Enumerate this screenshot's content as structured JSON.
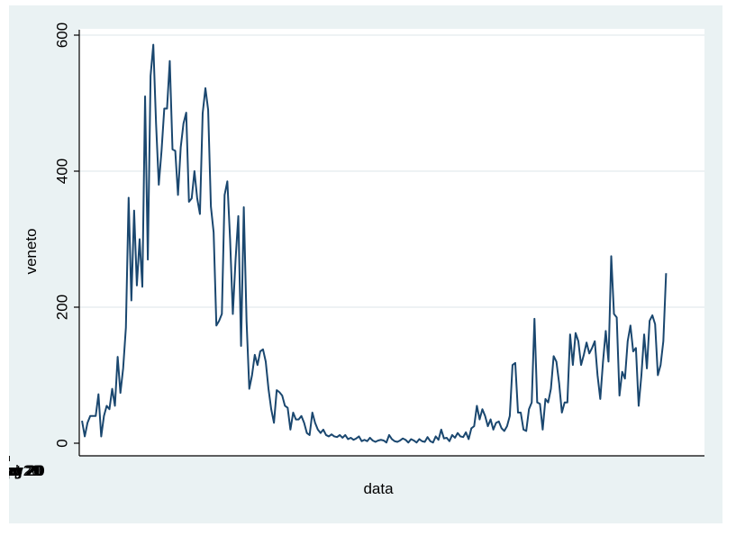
{
  "chart_data": {
    "type": "line",
    "xlabel": "data",
    "ylabel": "veneto",
    "ylim": [
      0,
      600
    ],
    "yticks": [
      0,
      200,
      400,
      600
    ],
    "xticks": [
      "01 Mar 2020",
      "01 Apr 2020",
      "01 May 2020",
      "01 Jun 2020",
      "01 Jul 2020",
      "01 Aug 2020",
      "01 Sep 2020",
      "01 Oct 2020"
    ],
    "xtick_labels": [
      "01 Mar 20",
      "01 Apr 20",
      "01 May 20",
      "01 Jun 20",
      "01 Jul 20",
      "01 Aug 20",
      "01 Sep 20",
      "01 Oct 20"
    ],
    "xlim": [
      "2020-02-23",
      "2020-10-08"
    ],
    "grid": true,
    "line_color": "#1a476f",
    "series": [
      {
        "start_date": "2020-02-24",
        "values": [
          33,
          10,
          30,
          40,
          40,
          40,
          72,
          10,
          40,
          55,
          50,
          80,
          55,
          127,
          74,
          110,
          170,
          361,
          210,
          342,
          232,
          300,
          230,
          510,
          270,
          540,
          586,
          470,
          380,
          430,
          492,
          492,
          562,
          432,
          430,
          365,
          435,
          470,
          486,
          355,
          360,
          400,
          360,
          337,
          485,
          522,
          490,
          348,
          310,
          173,
          180,
          190,
          365,
          385,
          300,
          190,
          270,
          334,
          143,
          347,
          180,
          80,
          100,
          130,
          115,
          135,
          138,
          120,
          80,
          50,
          30,
          78,
          75,
          70,
          55,
          52,
          20,
          45,
          35,
          35,
          40,
          30,
          15,
          12,
          45,
          30,
          20,
          15,
          20,
          12,
          10,
          13,
          10,
          9,
          12,
          8,
          12,
          6,
          8,
          5,
          7,
          10,
          3,
          5,
          3,
          8,
          4,
          2,
          4,
          5,
          4,
          1,
          12,
          6,
          3,
          2,
          4,
          7,
          5,
          1,
          6,
          4,
          1,
          6,
          3,
          2,
          9,
          3,
          1,
          10,
          5,
          20,
          7,
          8,
          3,
          12,
          8,
          15,
          10,
          9,
          16,
          6,
          22,
          25,
          55,
          35,
          50,
          40,
          25,
          35,
          20,
          30,
          32,
          22,
          18,
          25,
          40,
          115,
          118,
          45,
          45,
          20,
          18,
          50,
          60,
          183,
          60,
          58,
          20,
          65,
          60,
          80,
          128,
          120,
          88,
          45,
          60,
          60,
          160,
          115,
          162,
          150,
          115,
          130,
          148,
          132,
          140,
          150,
          100,
          65,
          120,
          165,
          120,
          275,
          190,
          185,
          70,
          105,
          95,
          150,
          173,
          135,
          140,
          55,
          100,
          160,
          110,
          180,
          188,
          175,
          100,
          115,
          150,
          250
        ]
      }
    ]
  }
}
